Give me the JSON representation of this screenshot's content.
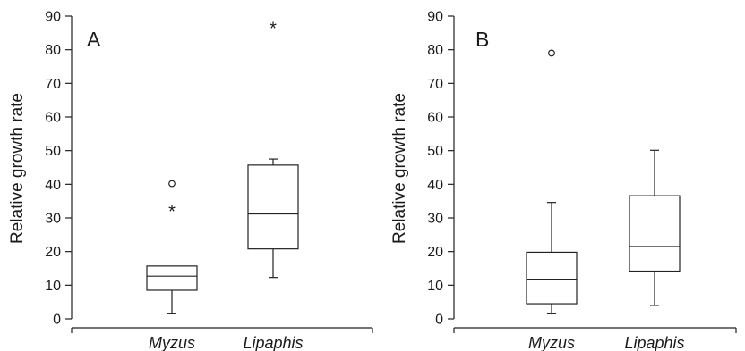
{
  "chart_data": [
    {
      "type": "box",
      "panel": "A",
      "ylabel": "Relative growth rate",
      "ylim": [
        0,
        90
      ],
      "yticks": [
        0,
        10,
        20,
        30,
        40,
        50,
        60,
        70,
        80,
        90
      ],
      "categories": [
        "Myzus",
        "Lipaphis"
      ],
      "boxes": [
        {
          "category": "Myzus",
          "whisker_low": 1.5,
          "q1": 8.5,
          "median": 12.7,
          "q3": 15.7,
          "whisker_high": 15.7,
          "outliers": [
            {
              "value": 40.2,
              "marker": "o"
            },
            {
              "value": 32.8,
              "marker": "*"
            }
          ]
        },
        {
          "category": "Lipaphis",
          "whisker_low": 12.3,
          "q1": 20.8,
          "median": 31.2,
          "q3": 45.7,
          "whisker_high": 47.5,
          "outliers": [
            {
              "value": 87.2,
              "marker": "*"
            }
          ]
        }
      ]
    },
    {
      "type": "box",
      "panel": "B",
      "ylabel": "Relative growth rate",
      "ylim": [
        0,
        90
      ],
      "yticks": [
        0,
        10,
        20,
        30,
        40,
        50,
        60,
        70,
        80,
        90
      ],
      "categories": [
        "Myzus",
        "Lipaphis"
      ],
      "boxes": [
        {
          "category": "Myzus",
          "whisker_low": 1.5,
          "q1": 4.5,
          "median": 11.8,
          "q3": 19.8,
          "whisker_high": 34.6,
          "outliers": [
            {
              "value": 79.0,
              "marker": "o"
            }
          ]
        },
        {
          "category": "Lipaphis",
          "whisker_low": 4.0,
          "q1": 14.2,
          "median": 21.5,
          "q3": 36.6,
          "whisker_high": 50.1,
          "outliers": []
        }
      ]
    }
  ]
}
